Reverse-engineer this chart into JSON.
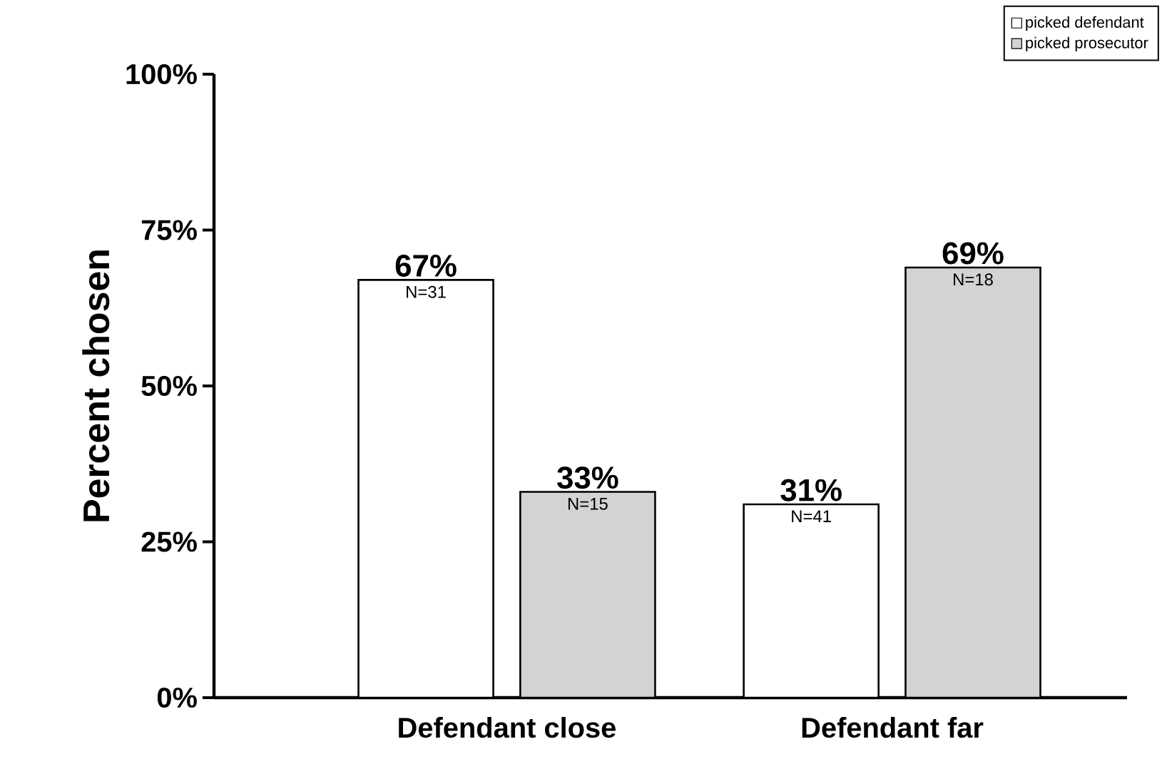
{
  "chart_data": {
    "type": "bar",
    "ylabel": "Percent chosen",
    "categories": [
      "Defendant close",
      "Defendant far"
    ],
    "series": [
      {
        "name": "picked defendant",
        "color": "#ffffff",
        "values": [
          67,
          31
        ],
        "value_labels": [
          "67%",
          "31%"
        ]
      },
      {
        "name": "picked prosecutor",
        "color": "#d3d3d3",
        "values": [
          33,
          69
        ],
        "value_labels": [
          "33%",
          "69%"
        ]
      }
    ],
    "ylim": [
      0,
      100
    ],
    "yticks": [
      {
        "value": 0,
        "label": "0%"
      },
      {
        "value": 25,
        "label": "25%"
      },
      {
        "value": 50,
        "label": "50%"
      },
      {
        "value": 75,
        "label": "75%"
      },
      {
        "value": 100,
        "label": "100%"
      }
    ],
    "annotations": [
      "N=31",
      "N=15",
      "N=41",
      "N=18"
    ],
    "legend": "top right"
  }
}
